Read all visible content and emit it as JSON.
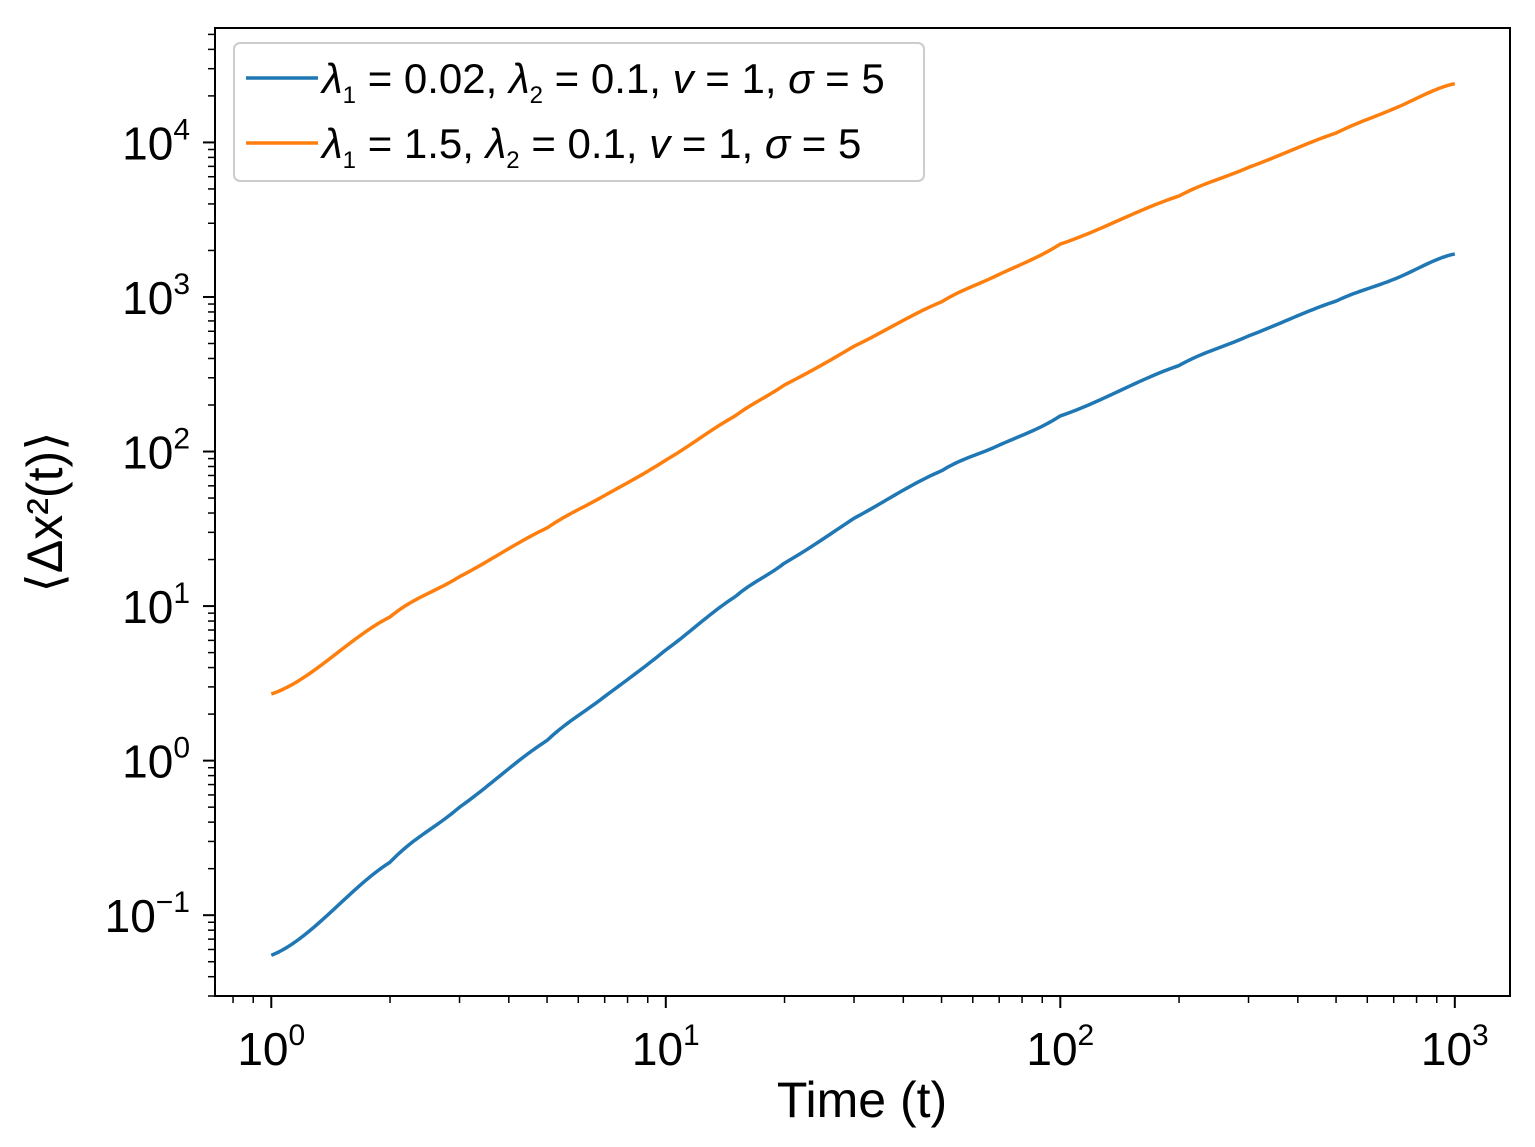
{
  "chart_data": {
    "type": "line",
    "x_scale": "log",
    "y_scale": "log",
    "xlim": [
      0.72,
      1380
    ],
    "ylim": [
      0.03,
      55000
    ],
    "xlabel": "Time (t)",
    "ylabel": "⟨Δx²(t)⟩",
    "grid": false,
    "legend_position": "top-left",
    "x_ticks": [
      {
        "value": 1,
        "base": "10",
        "exp": "0"
      },
      {
        "value": 10,
        "base": "10",
        "exp": "1"
      },
      {
        "value": 100,
        "base": "10",
        "exp": "2"
      },
      {
        "value": 1000,
        "base": "10",
        "exp": "3"
      }
    ],
    "y_ticks": [
      {
        "value": 0.1,
        "base": "10",
        "exp": "−1"
      },
      {
        "value": 1,
        "base": "10",
        "exp": "0"
      },
      {
        "value": 10,
        "base": "10",
        "exp": "1"
      },
      {
        "value": 100,
        "base": "10",
        "exp": "2"
      },
      {
        "value": 1000,
        "base": "10",
        "exp": "3"
      },
      {
        "value": 10000,
        "base": "10",
        "exp": "4"
      }
    ],
    "x": [
      1,
      2,
      3,
      5,
      7,
      10,
      15,
      20,
      30,
      50,
      70,
      100,
      200,
      300,
      500,
      700,
      1000
    ],
    "series": [
      {
        "name": "λ1 = 0.02, λ2 = 0.1, v = 1, σ = 5",
        "color": "#1f77b4",
        "legend_label": {
          "t1": "λ",
          "s1": "1",
          "t2": " = 0.02, ",
          "t3": "λ",
          "s2": "2",
          "t4": " = 0.1, ",
          "t5": "v",
          "t6": " = 1, ",
          "t7": "σ",
          "t8": " = 5"
        },
        "values": [
          0.055,
          0.22,
          0.5,
          1.35,
          2.6,
          5.2,
          11.5,
          19,
          37,
          75,
          110,
          170,
          360,
          560,
          940,
          1300,
          1900
        ]
      },
      {
        "name": "λ1 = 1.5, λ2 = 0.1, v = 1, σ = 5",
        "color": "#ff7f0e",
        "legend_label": {
          "t1": "λ",
          "s1": "1",
          "t2": " = 1.5, ",
          "t3": "λ",
          "s2": "2",
          "t4": " = 0.1, ",
          "t5": "v",
          "t6": " = 1, ",
          "t7": "σ",
          "t8": " = 5"
        },
        "values": [
          2.7,
          8.5,
          15.5,
          32,
          52,
          88,
          170,
          270,
          480,
          930,
          1400,
          2200,
          4500,
          6900,
          11500,
          16500,
          24000
        ]
      }
    ]
  }
}
